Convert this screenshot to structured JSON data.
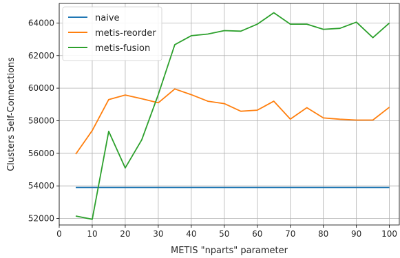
{
  "chart_data": {
    "type": "line",
    "title": "",
    "xlabel": "METIS \"nparts\" parameter",
    "ylabel": "Clusters Self-Connections",
    "xlim": [
      0,
      103
    ],
    "ylim": [
      51600,
      65200
    ],
    "x_ticks": [
      0,
      10,
      20,
      30,
      40,
      50,
      60,
      70,
      80,
      90,
      100
    ],
    "y_ticks": [
      52000,
      54000,
      56000,
      58000,
      60000,
      62000,
      64000
    ],
    "grid": true,
    "legend_position": "top-left",
    "x": [
      5,
      10,
      15,
      20,
      25,
      30,
      35,
      40,
      45,
      50,
      55,
      60,
      65,
      70,
      75,
      80,
      85,
      90,
      95,
      100
    ],
    "series": [
      {
        "name": "naive",
        "color": "#1f77b4",
        "values": [
          53900,
          53900,
          53900,
          53900,
          53900,
          53900,
          53900,
          53900,
          53900,
          53900,
          53900,
          53900,
          53900,
          53900,
          53900,
          53900,
          53900,
          53900,
          53900,
          53900
        ]
      },
      {
        "name": "metis-reorder",
        "color": "#ff7f0e",
        "values": [
          55950,
          57400,
          59300,
          59580,
          59350,
          59100,
          59950,
          59600,
          59200,
          59050,
          58580,
          58650,
          59200,
          58100,
          58800,
          58170,
          58090,
          58040,
          58040,
          58830
        ]
      },
      {
        "name": "metis-fusion",
        "color": "#2ca02c",
        "values": [
          52150,
          51950,
          57350,
          55100,
          56830,
          59610,
          62670,
          63220,
          63320,
          63530,
          63500,
          63930,
          64630,
          63930,
          63930,
          63610,
          63670,
          64050,
          63100,
          64000
        ]
      }
    ]
  }
}
